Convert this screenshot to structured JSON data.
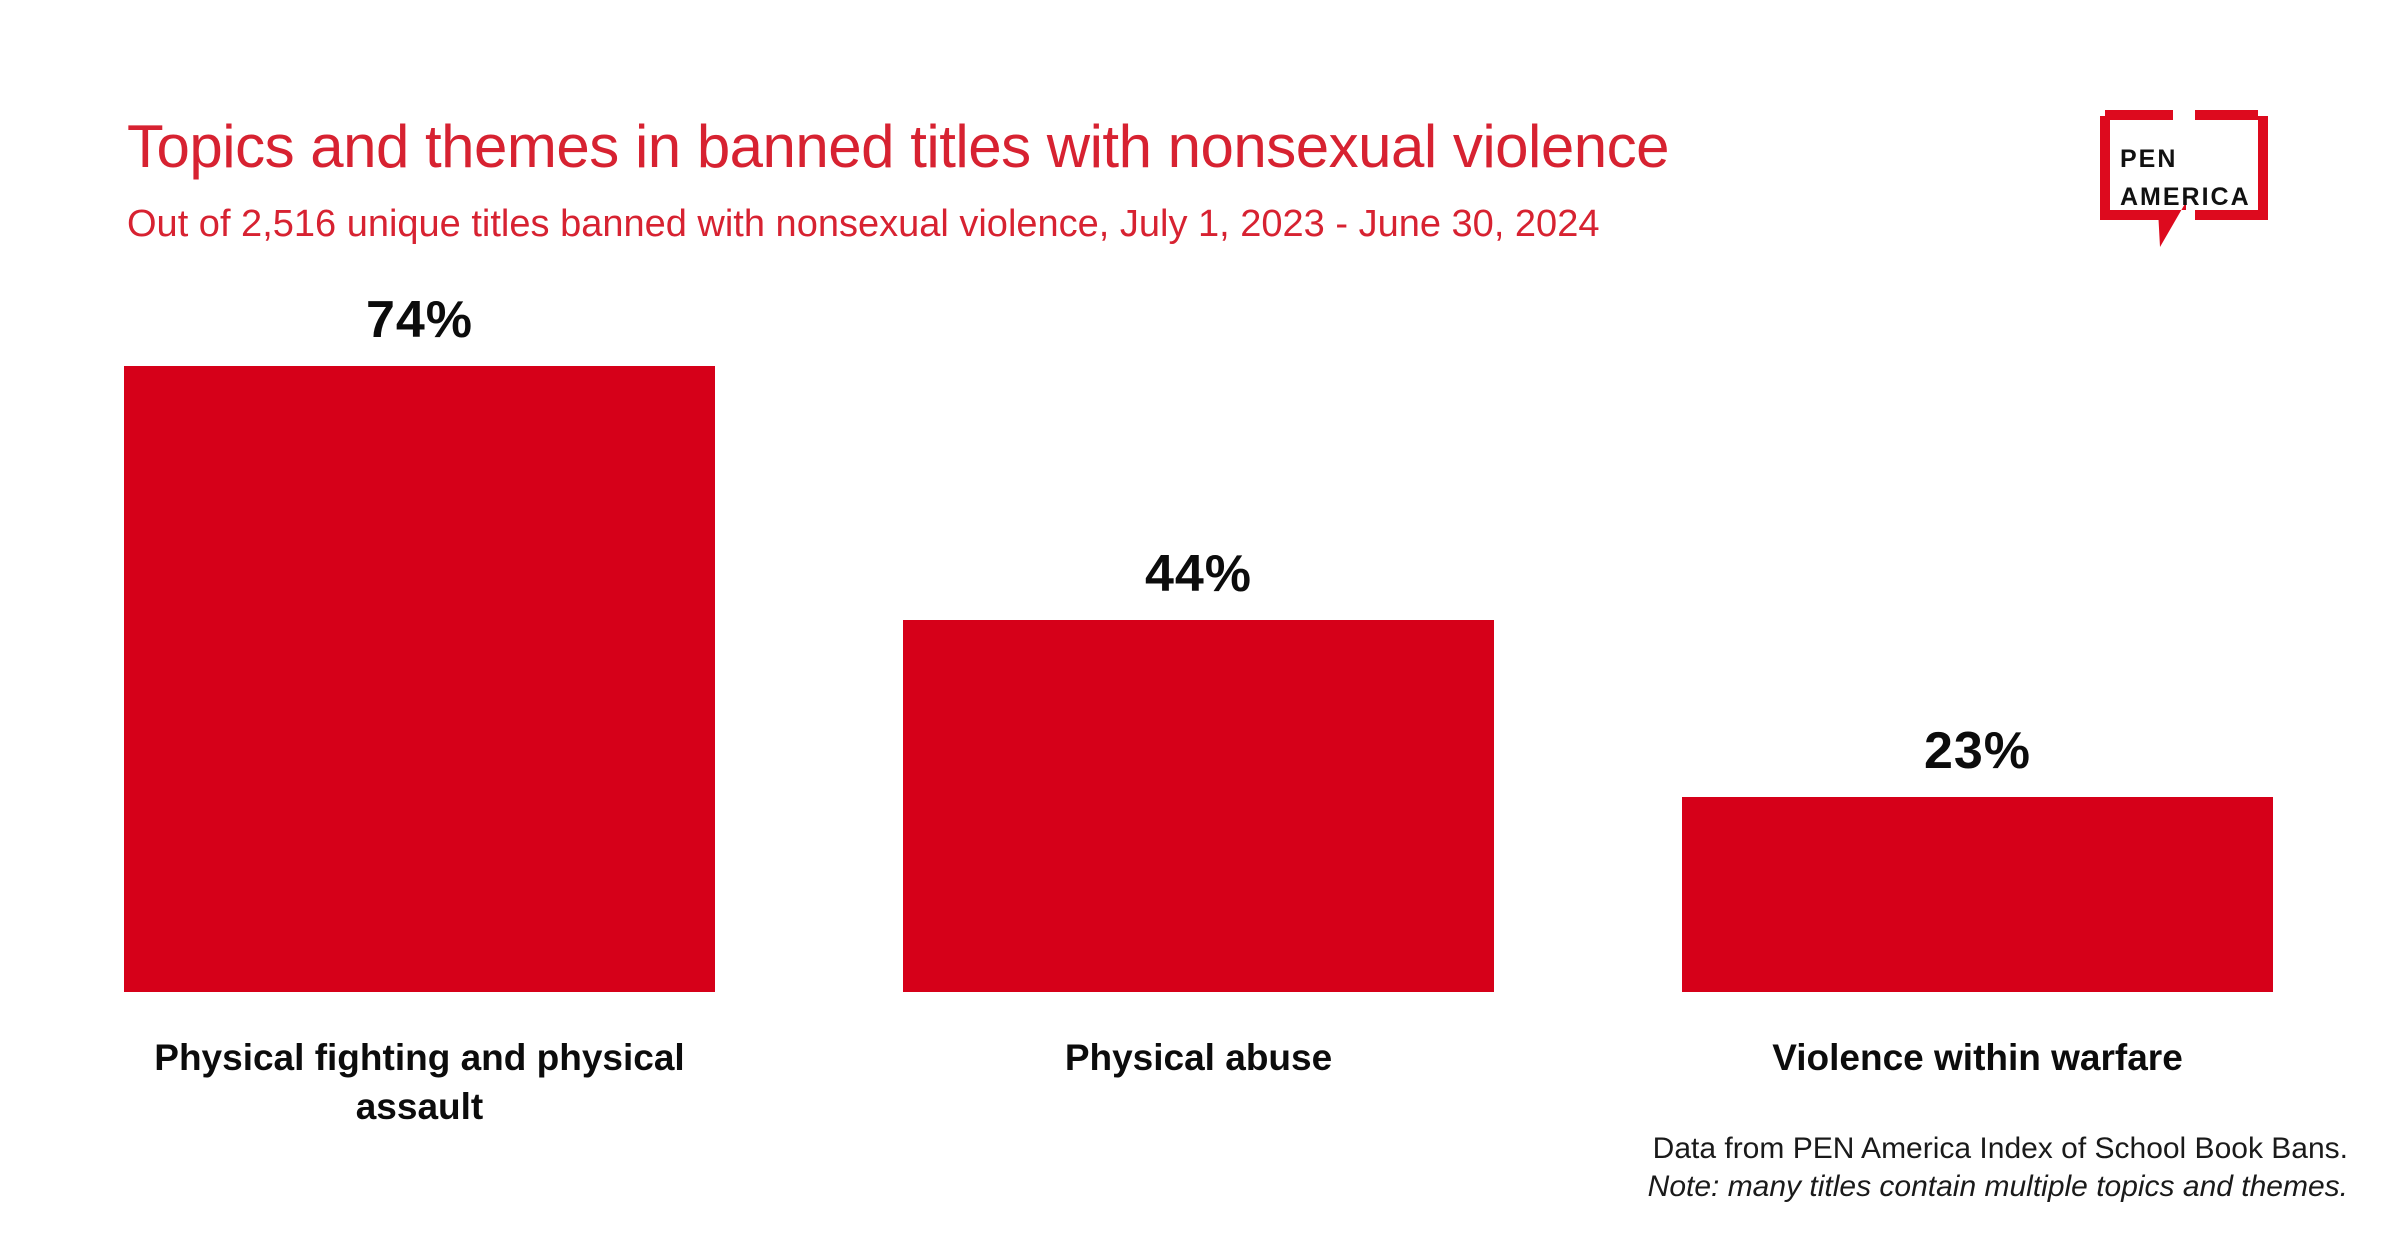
{
  "header": {
    "title": "Topics and themes in banned titles with nonsexual violence",
    "subtitle": "Out of 2,516 unique titles banned with nonsexual violence, July 1, 2023 - June 30, 2024"
  },
  "logo": {
    "line1": "PEN",
    "line2": "AMERICA"
  },
  "chart_data": {
    "type": "bar",
    "title": "Topics and themes in banned titles with nonsexual violence",
    "subtitle": "Out of 2,516 unique titles banned with nonsexual violence, July 1, 2023 - June 30, 2024",
    "categories": [
      "Physical fighting and physical assault",
      "Physical abuse",
      "Violence within warfare"
    ],
    "values": [
      74,
      44,
      23
    ],
    "value_labels": [
      "74%",
      "44%",
      "23%"
    ],
    "xlabel": "",
    "ylabel": "",
    "ylim": [
      0,
      100
    ],
    "unit": "%",
    "grid": false,
    "legend": false,
    "bar_color": "#d60019",
    "value_label_position": "above-bar",
    "category_label_position": "below-bar"
  },
  "footer": {
    "source": "Data from PEN America Index of School Book Bans.",
    "note": "Note: many titles contain multiple topics and themes."
  },
  "colors": {
    "bar_red": "#d60019",
    "title_red": "#d72231",
    "logo_red": "#dd0a1e",
    "text_black": "#0c0c0c",
    "footer_gray": "#1a1a1a",
    "background": "#ffffff"
  }
}
